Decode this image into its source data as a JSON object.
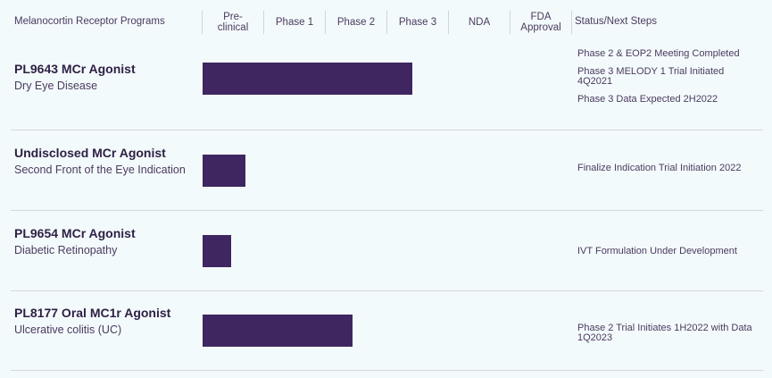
{
  "chart_data": {
    "type": "bar",
    "orientation": "horizontal",
    "title": "Melanocortin Receptor Programs",
    "categories": [
      "Pre-\nclinical",
      "Phase 1",
      "Phase 2",
      "Phase 3",
      "NDA",
      "FDA\nApproval"
    ],
    "status_header": "Status/Next Steps",
    "bar_color": "#3f2660",
    "programs": [
      {
        "name": "PL9643 MCr Agonist",
        "indication": "Dry Eye Disease",
        "progress_phases": 3.4,
        "status": [
          "Phase 2 & EOP2 Meeting Completed",
          "Phase 3 MELODY 1 Trial Initiated 4Q2021",
          "Phase 3 Data Expected 2H2022"
        ]
      },
      {
        "name": "Undisclosed MCr Agonist",
        "indication": "Second Front of the Eye Indication",
        "progress_phases": 0.7,
        "status": [
          "Finalize Indication Trial Initiation 2022"
        ]
      },
      {
        "name": "PL9654 MCr Agonist",
        "indication": "Diabetic Retinopathy",
        "progress_phases": 0.47,
        "status": [
          "IVT Formulation Under Development"
        ]
      },
      {
        "name": "PL8177 Oral MC1r Agonist",
        "indication": "Ulcerative colitis (UC)",
        "progress_phases": 2.43,
        "status": [
          "Phase 2 Trial Initiates 1H2022 with Data 1Q2023"
        ]
      }
    ]
  }
}
